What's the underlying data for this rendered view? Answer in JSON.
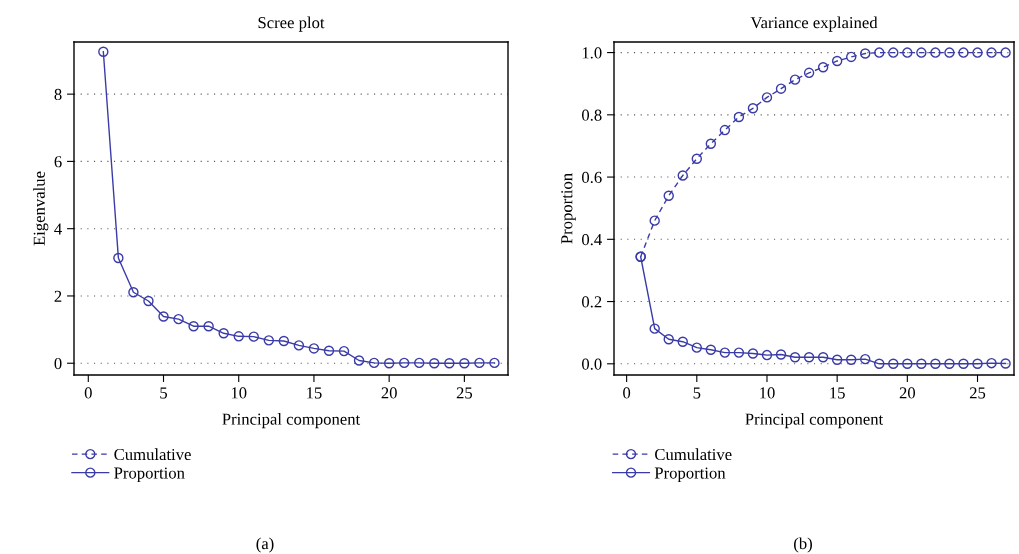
{
  "chart_data": [
    {
      "type": "line",
      "title": "Scree plot",
      "xlabel": "Principal component",
      "ylabel": "Eigenvalue",
      "x": [
        1,
        2,
        3,
        4,
        5,
        6,
        7,
        8,
        9,
        10,
        11,
        12,
        13,
        14,
        15,
        16,
        17,
        18,
        19,
        20,
        21,
        22,
        23,
        24,
        25,
        26,
        27
      ],
      "series": [
        {
          "name": "Cumulative",
          "color": "#3b3ba8",
          "line_style": "dashed",
          "values": [
            null,
            null,
            null,
            null,
            null,
            null,
            null,
            null,
            null,
            null,
            null,
            null,
            null,
            null,
            null,
            null,
            null,
            null,
            null,
            null,
            null,
            null,
            null,
            null,
            null,
            null,
            null
          ]
        },
        {
          "name": "Proportion",
          "color": "#3b3ba8",
          "line_style": "solid",
          "values": [
            9.26,
            3.13,
            2.11,
            1.85,
            1.39,
            1.31,
            1.1,
            1.1,
            0.89,
            0.8,
            0.79,
            0.68,
            0.66,
            0.53,
            0.44,
            0.37,
            0.36,
            0.08,
            0.01,
            0.0,
            0.01,
            0.01,
            0.0,
            0.0,
            0.0,
            0.01,
            0.01
          ]
        }
      ],
      "xlim": [
        -0.95,
        27.9
      ],
      "xticks": [
        0,
        5,
        10,
        15,
        20,
        25
      ],
      "ylim": [
        -0.35,
        9.55
      ],
      "yticks": [
        0,
        2,
        4,
        6,
        8
      ],
      "grid": "y",
      "marker": "circle",
      "legend": "bottom left",
      "annotations": [
        "(a)"
      ]
    },
    {
      "type": "line",
      "title": "Variance explained",
      "xlabel": "Principal component",
      "ylabel": "Proportion",
      "x": [
        1,
        2,
        3,
        4,
        5,
        6,
        7,
        8,
        9,
        10,
        11,
        12,
        13,
        14,
        15,
        16,
        17,
        18,
        19,
        20,
        21,
        22,
        23,
        24,
        25,
        26,
        27
      ],
      "series": [
        {
          "name": "Cumulative",
          "color": "#3b3ba8",
          "line_style": "dashed",
          "values": [
            0.344,
            0.46,
            0.54,
            0.605,
            0.659,
            0.707,
            0.751,
            0.793,
            0.821,
            0.856,
            0.884,
            0.913,
            0.935,
            0.953,
            0.973,
            0.986,
            0.997,
            1.0,
            1.0,
            1.0,
            1.0,
            1.0,
            1.0,
            1.0,
            1.0,
            1.0,
            1.0
          ]
        },
        {
          "name": "Proportion",
          "color": "#3b3ba8",
          "line_style": "solid",
          "values": [
            0.344,
            0.113,
            0.079,
            0.071,
            0.052,
            0.045,
            0.036,
            0.036,
            0.033,
            0.028,
            0.03,
            0.021,
            0.021,
            0.021,
            0.013,
            0.013,
            0.015,
            0.0,
            0.0,
            0.0,
            0.0,
            0.0,
            0.0,
            0.0,
            0.0,
            0.002,
            0.001
          ]
        }
      ],
      "xlim": [
        -0.9,
        27.6
      ],
      "xticks": [
        0,
        5,
        10,
        15,
        20,
        25
      ],
      "ylim": [
        -0.036,
        1.034
      ],
      "yticks": [
        {
          "value": 0,
          "label": "0.0"
        },
        {
          "value": 0.2,
          "label": "0.2"
        },
        {
          "value": 0.4,
          "label": "0.4"
        },
        {
          "value": 0.6,
          "label": "0.6"
        },
        {
          "value": 0.8,
          "label": "0.8"
        },
        {
          "value": 1,
          "label": "1.0"
        }
      ],
      "grid": "y",
      "marker": "circle",
      "legend": "bottom left",
      "annotations": [
        "(b)"
      ]
    }
  ]
}
